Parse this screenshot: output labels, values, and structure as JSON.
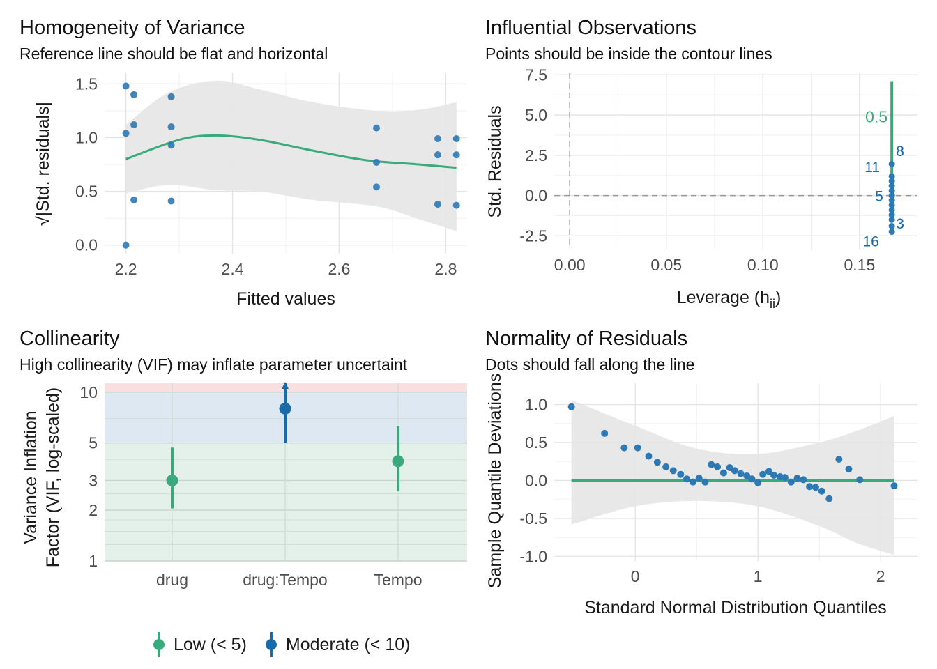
{
  "panels": {
    "homogeneity": {
      "title": "Homogeneity of Variance",
      "subtitle": "Reference line should be flat and horizontal"
    },
    "influential": {
      "title": "Influential Observations",
      "subtitle": "Points should be inside the contour lines"
    },
    "collinearity": {
      "title": "Collinearity",
      "subtitle": "High collinearity (VIF) may inflate parameter uncertaint"
    },
    "normality": {
      "title": "Normality of Residuals",
      "subtitle": "Dots should fall along the line"
    }
  },
  "legend": {
    "items": [
      {
        "label": "Low (< 5)",
        "color": "#3aaa7d"
      },
      {
        "label": "Moderate (< 10)",
        "color": "#1b6aa8"
      }
    ]
  },
  "colors": {
    "point": "#2e78b4",
    "fit_line": "#3aaa7d",
    "band": "#e5e5e5",
    "low_zone": "#e3f1ea",
    "moderate_zone": "#dde8f3",
    "high_zone": "#f8e0e0",
    "label_blue": "#1b6aa8"
  },
  "chart_data": [
    {
      "id": "homogeneity",
      "type": "scatter",
      "xlabel": "Fitted values",
      "ylabel": "√|Std. residuals|",
      "xlim": [
        2.16,
        2.84
      ],
      "ylim": [
        -0.08,
        1.6
      ],
      "xticks": [
        2.2,
        2.4,
        2.6,
        2.8
      ],
      "xtick_labels": [
        "2.2",
        "2.4",
        "2.6",
        "2.8"
      ],
      "yticks": [
        0.0,
        0.5,
        1.0,
        1.5
      ],
      "ytick_labels": [
        "0.0",
        "0.5",
        "1.0",
        "1.5"
      ],
      "points": [
        [
          2.2,
          1.48
        ],
        [
          2.2,
          1.04
        ],
        [
          2.2,
          0.0
        ],
        [
          2.215,
          1.4
        ],
        [
          2.215,
          1.12
        ],
        [
          2.215,
          0.42
        ],
        [
          2.285,
          1.38
        ],
        [
          2.285,
          1.1
        ],
        [
          2.285,
          0.93
        ],
        [
          2.285,
          0.41
        ],
        [
          2.67,
          1.09
        ],
        [
          2.67,
          0.77
        ],
        [
          2.67,
          0.54
        ],
        [
          2.785,
          0.99
        ],
        [
          2.785,
          0.84
        ],
        [
          2.785,
          0.38
        ],
        [
          2.82,
          0.99
        ],
        [
          2.82,
          0.84
        ],
        [
          2.82,
          0.37
        ]
      ],
      "smooth": [
        [
          2.2,
          0.8
        ],
        [
          2.3,
          0.98
        ],
        [
          2.37,
          1.02
        ],
        [
          2.45,
          0.98
        ],
        [
          2.55,
          0.88
        ],
        [
          2.65,
          0.79
        ],
        [
          2.75,
          0.75
        ],
        [
          2.82,
          0.72
        ]
      ],
      "band_upper": [
        [
          2.2,
          1.12
        ],
        [
          2.28,
          1.42
        ],
        [
          2.37,
          1.53
        ],
        [
          2.45,
          1.45
        ],
        [
          2.55,
          1.33
        ],
        [
          2.67,
          1.25
        ],
        [
          2.75,
          1.26
        ],
        [
          2.82,
          1.33
        ]
      ],
      "band_lower": [
        [
          2.2,
          0.48
        ],
        [
          2.28,
          0.56
        ],
        [
          2.37,
          0.51
        ],
        [
          2.45,
          0.5
        ],
        [
          2.55,
          0.42
        ],
        [
          2.67,
          0.36
        ],
        [
          2.75,
          0.24
        ],
        [
          2.82,
          0.13
        ]
      ]
    },
    {
      "id": "influential",
      "type": "scatter",
      "xlabel": "Leverage (hii)",
      "ylabel": "Std. Residuals",
      "xlim": [
        -0.008,
        0.18
      ],
      "ylim": [
        -3.35,
        7.6
      ],
      "xticks": [
        0.0,
        0.05,
        0.1,
        0.15
      ],
      "xtick_labels": [
        "0.00",
        "0.05",
        "0.10",
        "0.15"
      ],
      "yticks": [
        -2.5,
        0.0,
        2.5,
        5.0,
        7.5
      ],
      "ytick_labels": [
        "-2.5",
        "0.0",
        "2.5",
        "5.0",
        "7.5"
      ],
      "points": [
        [
          0.1667,
          1.95
        ],
        [
          0.1667,
          1.2
        ],
        [
          0.1667,
          0.9
        ],
        [
          0.1667,
          0.6
        ],
        [
          0.1667,
          0.3
        ],
        [
          0.1667,
          0.0
        ],
        [
          0.1667,
          -0.3
        ],
        [
          0.1667,
          -0.6
        ],
        [
          0.1667,
          -0.9
        ],
        [
          0.1667,
          -1.2
        ],
        [
          0.1667,
          -1.5
        ],
        [
          0.1667,
          -1.9
        ],
        [
          0.1667,
          -2.25
        ]
      ],
      "contour_label": "0.5",
      "contour": [
        [
          0.1667,
          -1.5
        ],
        [
          0.1667,
          7.1
        ]
      ],
      "point_labels": [
        {
          "label": "8",
          "x": 0.1667,
          "y": 2.8
        },
        {
          "label": "11",
          "x": 0.1667,
          "y": 1.8
        },
        {
          "label": "5",
          "x": 0.1667,
          "y": 0.0
        },
        {
          "label": "3",
          "x": 0.1667,
          "y": -1.7
        },
        {
          "label": "16",
          "x": 0.1667,
          "y": -2.8
        }
      ]
    },
    {
      "id": "collinearity",
      "type": "scatter",
      "ylabel": "Variance Inflation Factor (VIF, log-scaled)",
      "scale_y": "log",
      "ylim": [
        1,
        11.3
      ],
      "categories": [
        "drug",
        "drug:Tempo",
        "Tempo"
      ],
      "yticks": [
        1,
        2,
        3,
        5,
        10
      ],
      "ytick_labels": [
        "1",
        "2",
        "3",
        "5",
        "10"
      ],
      "zones": [
        {
          "from": 1,
          "to": 5,
          "name": "Low"
        },
        {
          "from": 5,
          "to": 10,
          "name": "Moderate"
        },
        {
          "from": 10,
          "to": 11.3,
          "name": "High"
        }
      ],
      "series": [
        {
          "category": "drug",
          "vif": 3.0,
          "ci": [
            2.05,
            4.7
          ],
          "level": "low"
        },
        {
          "category": "drug:Tempo",
          "vif": 8.0,
          "ci": [
            5.0,
            11.5
          ],
          "level": "moderate"
        },
        {
          "category": "Tempo",
          "vif": 3.9,
          "ci": [
            2.6,
            6.3
          ],
          "level": "low"
        }
      ]
    },
    {
      "id": "normality",
      "type": "scatter",
      "xlabel": "Standard Normal Distribution Quantiles",
      "ylabel": "Sample Quantile Deviations",
      "xlim": [
        -0.66,
        2.3
      ],
      "ylim": [
        -1.06,
        1.28
      ],
      "xticks": [
        0,
        1,
        2
      ],
      "xtick_labels": [
        "0",
        "1",
        "2"
      ],
      "yticks": [
        -1.0,
        -0.5,
        0.0,
        0.5,
        1.0
      ],
      "ytick_labels": [
        "-1.0",
        "-0.5",
        "0.0",
        "0.5",
        "1.0"
      ],
      "points": [
        [
          -0.52,
          0.97
        ],
        [
          -0.25,
          0.62
        ],
        [
          -0.09,
          0.43
        ],
        [
          0.02,
          0.43
        ],
        [
          0.11,
          0.32
        ],
        [
          0.18,
          0.24
        ],
        [
          0.25,
          0.18
        ],
        [
          0.31,
          0.13
        ],
        [
          0.37,
          0.08
        ],
        [
          0.42,
          0.02
        ],
        [
          0.47,
          -0.02
        ],
        [
          0.52,
          0.03
        ],
        [
          0.57,
          -0.02
        ],
        [
          0.62,
          0.21
        ],
        [
          0.67,
          0.18
        ],
        [
          0.72,
          0.1
        ],
        [
          0.77,
          0.17
        ],
        [
          0.81,
          0.13
        ],
        [
          0.86,
          0.09
        ],
        [
          0.91,
          0.06
        ],
        [
          0.95,
          0.02
        ],
        [
          1.0,
          -0.03
        ],
        [
          1.04,
          0.08
        ],
        [
          1.09,
          0.12
        ],
        [
          1.13,
          0.07
        ],
        [
          1.18,
          0.05
        ],
        [
          1.22,
          0.04
        ],
        [
          1.27,
          -0.02
        ],
        [
          1.32,
          0.03
        ],
        [
          1.37,
          0.01
        ],
        [
          1.42,
          -0.08
        ],
        [
          1.47,
          -0.09
        ],
        [
          1.52,
          -0.14
        ],
        [
          1.58,
          -0.24
        ],
        [
          1.66,
          0.28
        ],
        [
          1.74,
          0.15
        ],
        [
          1.83,
          0.01
        ],
        [
          2.11,
          -0.07
        ]
      ],
      "ref_line": [
        [
          -0.52,
          0.0
        ],
        [
          2.11,
          0.0
        ]
      ],
      "band_upper": [
        [
          -0.52,
          1.06
        ],
        [
          0.0,
          0.72
        ],
        [
          0.5,
          0.42
        ],
        [
          1.0,
          0.35
        ],
        [
          1.5,
          0.5
        ],
        [
          1.8,
          0.65
        ],
        [
          2.11,
          0.85
        ]
      ],
      "band_lower": [
        [
          -0.52,
          -0.58
        ],
        [
          0.0,
          -0.34
        ],
        [
          0.5,
          -0.27
        ],
        [
          1.0,
          -0.34
        ],
        [
          1.5,
          -0.6
        ],
        [
          1.8,
          -0.82
        ],
        [
          2.11,
          -0.98
        ]
      ]
    }
  ]
}
